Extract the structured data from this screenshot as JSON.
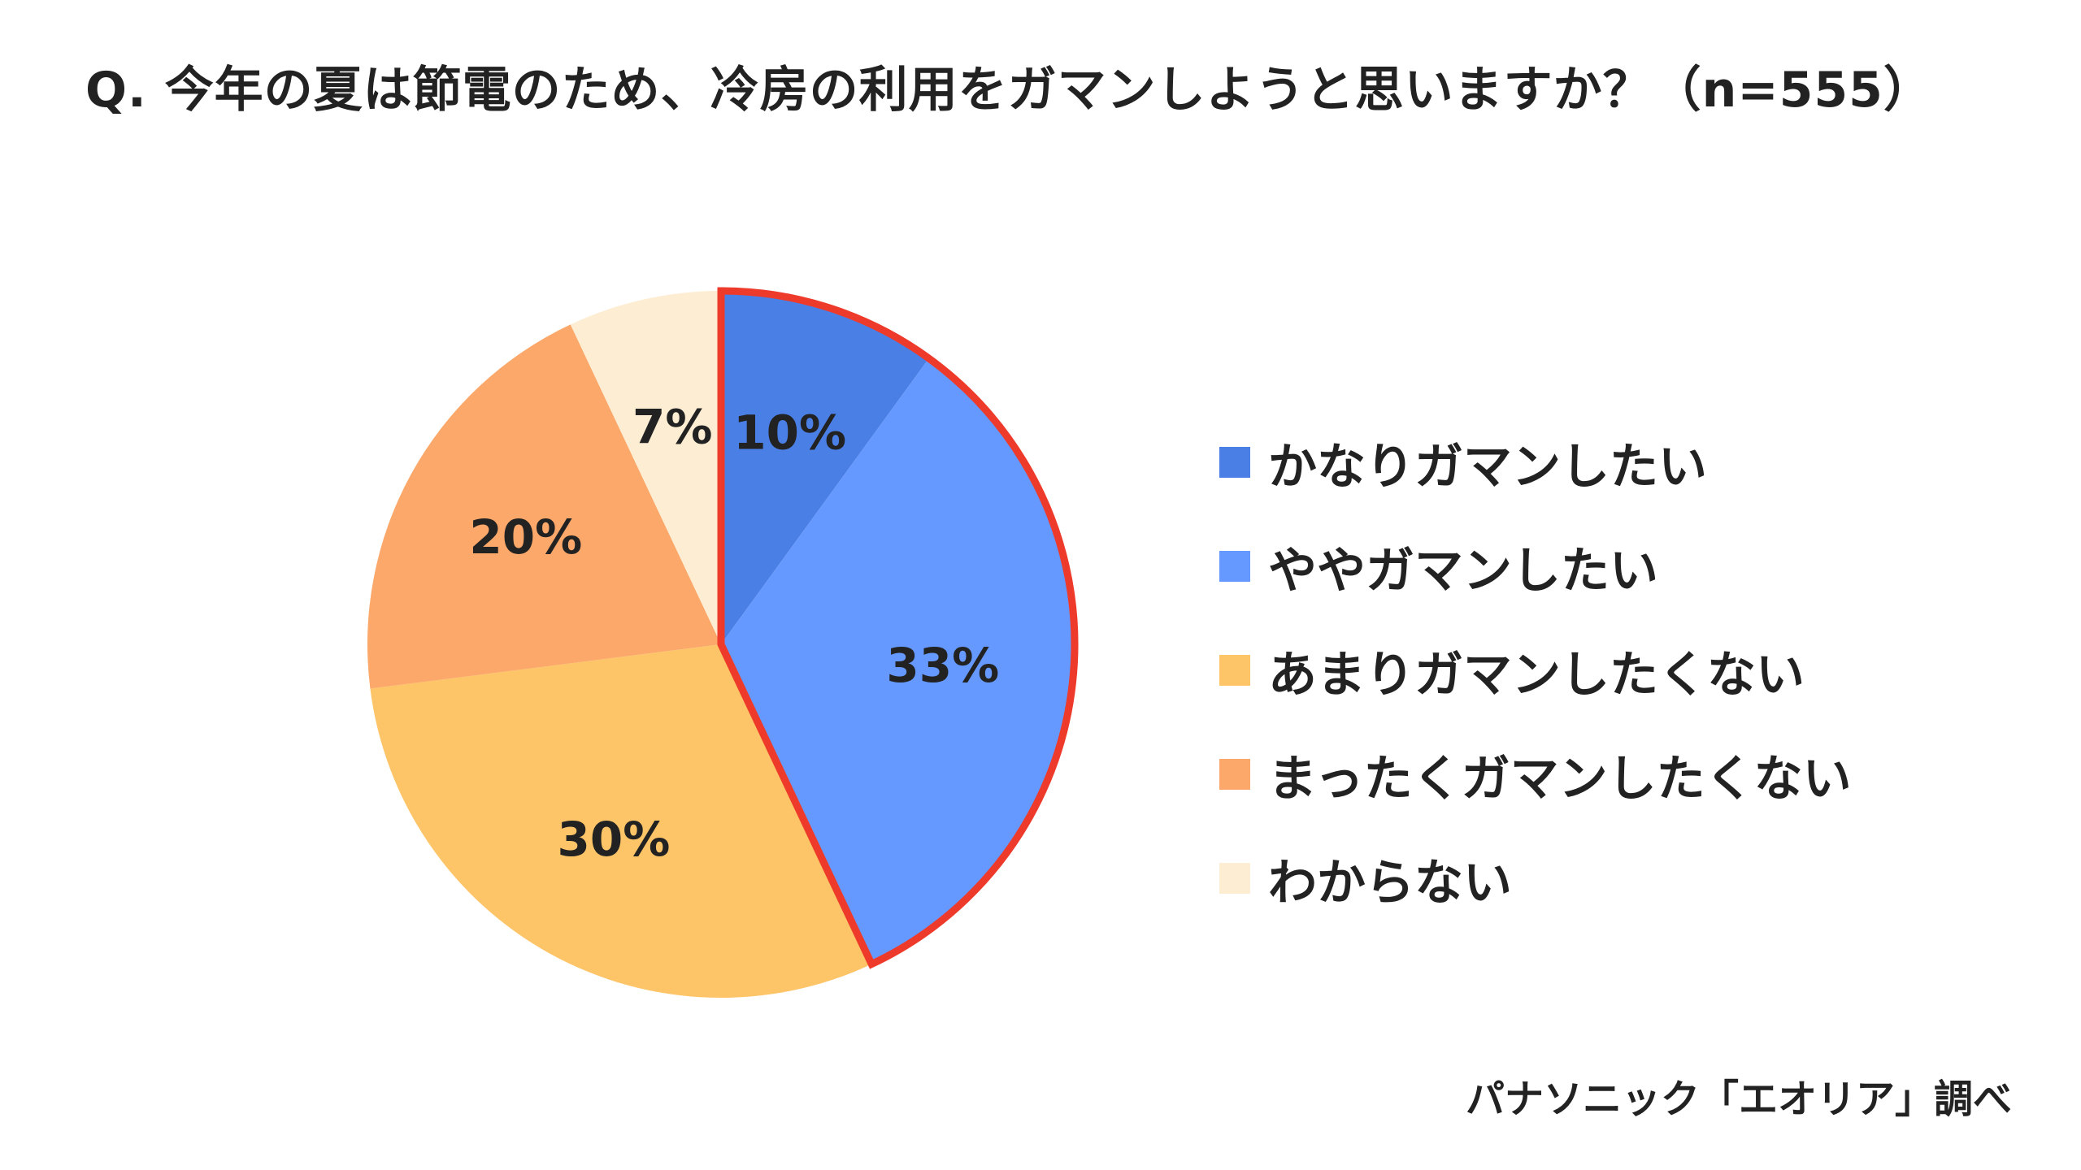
{
  "title": "Q. 今年の夏は節電のため、冷房の利用をガマンしようと思いますか？（n=555）",
  "source": "パナソニック「エオリア」調べ",
  "chart_data": {
    "type": "pie",
    "title": "Q. 今年の夏は節電のため、冷房の利用をガマンしようと思いますか？（n=555）",
    "n": 555,
    "start": "12 o'clock, clockwise",
    "legend_position": "right",
    "highlight": {
      "segments": [
        "かなりガマンしたい",
        "ややガマンしたい"
      ],
      "outline_color": "#EE3A2A"
    },
    "slices": [
      {
        "label": "かなりガマンしたい",
        "value": 10,
        "display": "10%",
        "color": "#4A7FE6"
      },
      {
        "label": "ややガマンしたい",
        "value": 33,
        "display": "33%",
        "color": "#6699FF"
      },
      {
        "label": "あまりガマンしたくない",
        "value": 30,
        "display": "30%",
        "color": "#FDC468"
      },
      {
        "label": "まったくガマンしたくない",
        "value": 20,
        "display": "20%",
        "color": "#FBA86A"
      },
      {
        "label": "わからない",
        "value": 7,
        "display": "7%",
        "color": "#FDEDD3"
      }
    ]
  }
}
